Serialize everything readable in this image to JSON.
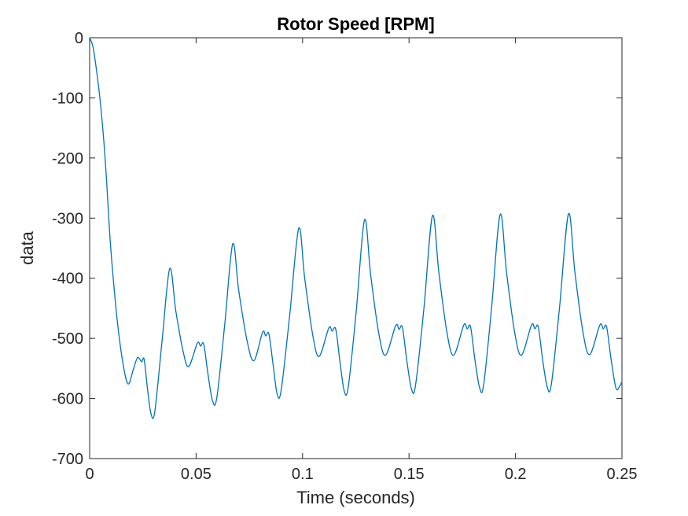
{
  "figure": {
    "title": "Rotor Speed [RPM]",
    "xlabel": "Time (seconds)",
    "ylabel": "data"
  },
  "colors": {
    "line": "#0072BD",
    "axes": "#262626",
    "title_text": "#000000",
    "background": "#FFFFFF"
  },
  "chart_data": {
    "type": "line",
    "title": "Rotor Speed [RPM]",
    "xlabel": "Time (seconds)",
    "ylabel": "data",
    "xlim": [
      0,
      0.25
    ],
    "ylim": [
      -700,
      0
    ],
    "grid": false,
    "legend": "none",
    "x_ticks": {
      "values": [
        0,
        0.05,
        0.1,
        0.15,
        0.2,
        0.25
      ],
      "labels": [
        "0",
        "0.05",
        "0.1",
        "0.15",
        "0.2",
        "0.25"
      ]
    },
    "y_ticks": {
      "values": [
        0,
        -100,
        -200,
        -300,
        -400,
        -500,
        -600,
        -700
      ],
      "labels": [
        "0",
        "-100",
        "-200",
        "-300",
        "-400",
        "-500",
        "-600",
        "-700"
      ]
    },
    "series": [
      {
        "name": "data",
        "color": "#0072BD",
        "points": [
          [
            0.0,
            0
          ],
          [
            0.0015,
            -14
          ],
          [
            0.003,
            -48
          ],
          [
            0.0048,
            -100
          ],
          [
            0.0065,
            -165
          ],
          [
            0.008,
            -240
          ],
          [
            0.0095,
            -330
          ],
          [
            0.0112,
            -405
          ],
          [
            0.0132,
            -478
          ],
          [
            0.0158,
            -545
          ],
          [
            0.0181,
            -576
          ],
          [
            0.0205,
            -552
          ],
          [
            0.0225,
            -532
          ],
          [
            0.0244,
            -539
          ],
          [
            0.0256,
            -535
          ],
          [
            0.0272,
            -585
          ],
          [
            0.0288,
            -625
          ],
          [
            0.0306,
            -622
          ],
          [
            0.034,
            -505
          ],
          [
            0.0376,
            -384
          ],
          [
            0.0405,
            -455
          ],
          [
            0.0438,
            -520
          ],
          [
            0.0465,
            -547
          ],
          [
            0.0506,
            -508
          ],
          [
            0.0521,
            -513
          ],
          [
            0.0536,
            -510
          ],
          [
            0.0556,
            -560
          ],
          [
            0.0578,
            -605
          ],
          [
            0.0598,
            -597
          ],
          [
            0.0635,
            -475
          ],
          [
            0.0672,
            -343
          ],
          [
            0.07,
            -420
          ],
          [
            0.074,
            -505
          ],
          [
            0.0772,
            -537
          ],
          [
            0.0812,
            -490
          ],
          [
            0.0827,
            -496
          ],
          [
            0.0842,
            -493
          ],
          [
            0.0862,
            -545
          ],
          [
            0.0881,
            -593
          ],
          [
            0.09,
            -585
          ],
          [
            0.094,
            -460
          ],
          [
            0.0982,
            -317
          ],
          [
            0.101,
            -400
          ],
          [
            0.1048,
            -495
          ],
          [
            0.1078,
            -530
          ],
          [
            0.1123,
            -483
          ],
          [
            0.1139,
            -488
          ],
          [
            0.1156,
            -485
          ],
          [
            0.1176,
            -540
          ],
          [
            0.1196,
            -588
          ],
          [
            0.1215,
            -580
          ],
          [
            0.1252,
            -455
          ],
          [
            0.1291,
            -303
          ],
          [
            0.132,
            -395
          ],
          [
            0.1358,
            -492
          ],
          [
            0.139,
            -528
          ],
          [
            0.1437,
            -479
          ],
          [
            0.1453,
            -485
          ],
          [
            0.1469,
            -482
          ],
          [
            0.149,
            -538
          ],
          [
            0.1512,
            -585
          ],
          [
            0.1531,
            -577
          ],
          [
            0.157,
            -450
          ],
          [
            0.161,
            -296
          ],
          [
            0.164,
            -390
          ],
          [
            0.1678,
            -490
          ],
          [
            0.171,
            -528
          ],
          [
            0.1757,
            -478
          ],
          [
            0.1773,
            -484
          ],
          [
            0.1789,
            -481
          ],
          [
            0.181,
            -537
          ],
          [
            0.1832,
            -583
          ],
          [
            0.1851,
            -576
          ],
          [
            0.1888,
            -448
          ],
          [
            0.1928,
            -294
          ],
          [
            0.1958,
            -390
          ],
          [
            0.1996,
            -490
          ],
          [
            0.2028,
            -528
          ],
          [
            0.2075,
            -478
          ],
          [
            0.2091,
            -484
          ],
          [
            0.2107,
            -481
          ],
          [
            0.2128,
            -537
          ],
          [
            0.215,
            -582
          ],
          [
            0.2169,
            -575
          ],
          [
            0.2207,
            -448
          ],
          [
            0.2249,
            -293
          ],
          [
            0.2279,
            -390
          ],
          [
            0.2317,
            -490
          ],
          [
            0.2349,
            -527
          ],
          [
            0.2396,
            -478
          ],
          [
            0.2412,
            -484
          ],
          [
            0.2428,
            -481
          ],
          [
            0.2449,
            -535
          ],
          [
            0.2472,
            -583
          ],
          [
            0.249,
            -579
          ],
          [
            0.25,
            -572
          ]
        ]
      }
    ]
  }
}
